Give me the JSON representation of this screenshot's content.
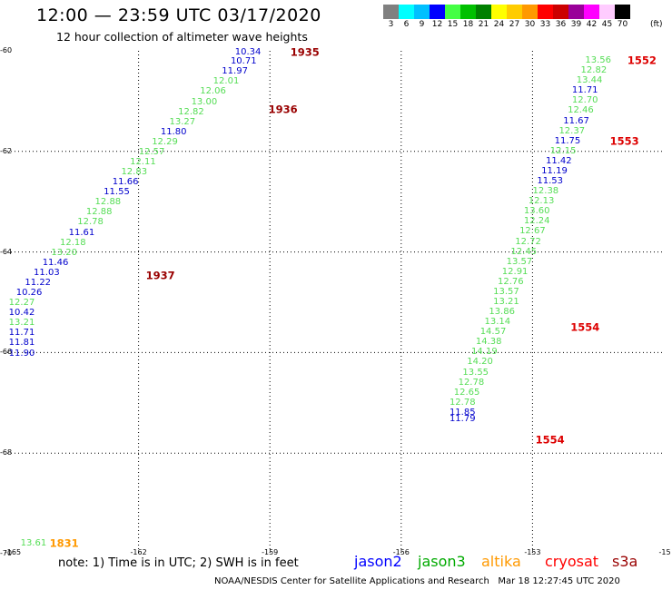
{
  "header": {
    "title": "12:00 — 23:59 UTC 03/17/2020",
    "subtitle": "12 hour collection of altimeter wave heights"
  },
  "colorbar": {
    "colors": [
      "#808080",
      "#00ffff",
      "#00c0ff",
      "#0000ff",
      "#44ff44",
      "#00c000",
      "#008000",
      "#ffff00",
      "#ffcc00",
      "#ff9900",
      "#ff0000",
      "#cc0000",
      "#990099",
      "#ff00ff",
      "#ffccff",
      "#000000"
    ],
    "labels": [
      "3",
      "6",
      "9",
      "12",
      "15",
      "18",
      "21",
      "24",
      "27",
      "30",
      "33",
      "36",
      "39",
      "42",
      "45",
      "70"
    ],
    "unit": "(ft)"
  },
  "map": {
    "y_tick_labels": [
      "-60",
      "-62",
      "-64",
      "-66",
      "-68",
      "-70"
    ],
    "x_tick_labels": [
      "-165",
      "-162",
      "-159",
      "-156",
      "-153",
      "-15"
    ]
  },
  "colors": {
    "jason2": "#0000ff",
    "jason3": "#00aa00",
    "altika": "#ff9900",
    "cryosat": "#ff0000",
    "s3a": "#990000",
    "green_marks": "#55dd55",
    "blue_marks": "#0000cc"
  },
  "chart_data": {
    "type": "scatter",
    "x_range": [
      -165,
      -150
    ],
    "y_range": [
      -70,
      -60
    ],
    "time_labels": [
      {
        "text": "1935",
        "lon": -158.2,
        "lat": -60.03,
        "color": "#990000"
      },
      {
        "text": "1936",
        "lon": -158.7,
        "lat": -61.17,
        "color": "#990000"
      },
      {
        "text": "1937",
        "lon": -161.5,
        "lat": -64.48,
        "color": "#990000"
      },
      {
        "text": "1831",
        "lon": -163.7,
        "lat": -69.8,
        "color": "#ff9900"
      },
      {
        "text": "1552",
        "lon": -150.5,
        "lat": -60.2,
        "color": "#dd0000"
      },
      {
        "text": "1553",
        "lon": -150.9,
        "lat": -61.8,
        "color": "#dd0000"
      },
      {
        "text": "1554",
        "lon": -151.8,
        "lat": -65.5,
        "color": "#dd0000"
      },
      {
        "text": "1554",
        "lon": -152.6,
        "lat": -67.75,
        "color": "#dd0000"
      }
    ],
    "points": [
      {
        "v": "10.34",
        "lon": -159.5,
        "lat": -60.03,
        "c": "b"
      },
      {
        "v": "10.71",
        "lon": -159.6,
        "lat": -60.22,
        "c": "b"
      },
      {
        "v": "11.97",
        "lon": -159.8,
        "lat": -60.42,
        "c": "b"
      },
      {
        "v": "12.01",
        "lon": -160.0,
        "lat": -60.62,
        "c": "g"
      },
      {
        "v": "12.06",
        "lon": -160.3,
        "lat": -60.82,
        "c": "g"
      },
      {
        "v": "13.00",
        "lon": -160.5,
        "lat": -61.02,
        "c": "g"
      },
      {
        "v": "12.82",
        "lon": -160.8,
        "lat": -61.22,
        "c": "g"
      },
      {
        "v": "13.27",
        "lon": -161.0,
        "lat": -61.42,
        "c": "g"
      },
      {
        "v": "11.80",
        "lon": -161.2,
        "lat": -61.62,
        "c": "b"
      },
      {
        "v": "12.29",
        "lon": -161.4,
        "lat": -61.82,
        "c": "g"
      },
      {
        "v": "12.57",
        "lon": -161.7,
        "lat": -62.02,
        "c": "g"
      },
      {
        "v": "12.11",
        "lon": -161.9,
        "lat": -62.22,
        "c": "g"
      },
      {
        "v": "12.83",
        "lon": -162.1,
        "lat": -62.42,
        "c": "g"
      },
      {
        "v": "11.66",
        "lon": -162.3,
        "lat": -62.62,
        "c": "b"
      },
      {
        "v": "11.55",
        "lon": -162.5,
        "lat": -62.82,
        "c": "b"
      },
      {
        "v": "12.88",
        "lon": -162.7,
        "lat": -63.02,
        "c": "g"
      },
      {
        "v": "12.88",
        "lon": -162.9,
        "lat": -63.22,
        "c": "g"
      },
      {
        "v": "12.78",
        "lon": -163.1,
        "lat": -63.42,
        "c": "g"
      },
      {
        "v": "11.61",
        "lon": -163.3,
        "lat": -63.62,
        "c": "b"
      },
      {
        "v": "12.18",
        "lon": -163.5,
        "lat": -63.82,
        "c": "g"
      },
      {
        "v": "13.20",
        "lon": -163.7,
        "lat": -64.02,
        "c": "g"
      },
      {
        "v": "11.46",
        "lon": -163.9,
        "lat": -64.22,
        "c": "b"
      },
      {
        "v": "11.03",
        "lon": -164.1,
        "lat": -64.42,
        "c": "b"
      },
      {
        "v": "11.22",
        "lon": -164.3,
        "lat": -64.62,
        "c": "b"
      },
      {
        "v": "10.26",
        "lon": -164.5,
        "lat": -64.82,
        "c": "b"
      },
      {
        "v": "12.27",
        "lon": -164.7,
        "lat": -65.02,
        "c": "g"
      },
      {
        "v": "10.42",
        "lon": -164.9,
        "lat": -65.22,
        "c": "b"
      },
      {
        "v": "13.21",
        "lon": -165.1,
        "lat": -65.42,
        "c": "g"
      },
      {
        "v": "11.71",
        "lon": -165.3,
        "lat": -65.62,
        "c": "b"
      },
      {
        "v": "11.81",
        "lon": -165.5,
        "lat": -65.82,
        "c": "b"
      },
      {
        "v": "11.90",
        "lon": -165.7,
        "lat": -66.02,
        "c": "b"
      },
      {
        "v": "13.61",
        "lon": -164.4,
        "lat": -69.8,
        "c": "g"
      },
      {
        "v": "13.56",
        "lon": -151.5,
        "lat": -60.2,
        "c": "g"
      },
      {
        "v": "12.82",
        "lon": -151.6,
        "lat": -60.4,
        "c": "g"
      },
      {
        "v": "13.44",
        "lon": -151.7,
        "lat": -60.6,
        "c": "g"
      },
      {
        "v": "11.71",
        "lon": -151.8,
        "lat": -60.8,
        "c": "b"
      },
      {
        "v": "12.70",
        "lon": -151.8,
        "lat": -61.0,
        "c": "g"
      },
      {
        "v": "12.46",
        "lon": -151.9,
        "lat": -61.2,
        "c": "g"
      },
      {
        "v": "11.67",
        "lon": -152.0,
        "lat": -61.4,
        "c": "b"
      },
      {
        "v": "12.37",
        "lon": -152.1,
        "lat": -61.6,
        "c": "g"
      },
      {
        "v": "11.75",
        "lon": -152.2,
        "lat": -61.8,
        "c": "b"
      },
      {
        "v": "12.15",
        "lon": -152.3,
        "lat": -62.0,
        "c": "g"
      },
      {
        "v": "11.42",
        "lon": -152.4,
        "lat": -62.2,
        "c": "b"
      },
      {
        "v": "11.19",
        "lon": -152.5,
        "lat": -62.4,
        "c": "b"
      },
      {
        "v": "11.53",
        "lon": -152.6,
        "lat": -62.6,
        "c": "b"
      },
      {
        "v": "12.38",
        "lon": -152.7,
        "lat": -62.8,
        "c": "g"
      },
      {
        "v": "12.13",
        "lon": -152.8,
        "lat": -63.0,
        "c": "g"
      },
      {
        "v": "13.60",
        "lon": -152.9,
        "lat": -63.2,
        "c": "g"
      },
      {
        "v": "12.24",
        "lon": -152.9,
        "lat": -63.4,
        "c": "g"
      },
      {
        "v": "12.67",
        "lon": -153.0,
        "lat": -63.6,
        "c": "g"
      },
      {
        "v": "12.72",
        "lon": -153.1,
        "lat": -63.8,
        "c": "g"
      },
      {
        "v": "12.45",
        "lon": -153.2,
        "lat": -64.0,
        "c": "g"
      },
      {
        "v": "13.57",
        "lon": -153.3,
        "lat": -64.2,
        "c": "g"
      },
      {
        "v": "12.91",
        "lon": -153.4,
        "lat": -64.4,
        "c": "g"
      },
      {
        "v": "12.76",
        "lon": -153.5,
        "lat": -64.6,
        "c": "g"
      },
      {
        "v": "13.57",
        "lon": -153.6,
        "lat": -64.8,
        "c": "g"
      },
      {
        "v": "13.21",
        "lon": -153.6,
        "lat": -65.0,
        "c": "g"
      },
      {
        "v": "13.86",
        "lon": -153.7,
        "lat": -65.2,
        "c": "g"
      },
      {
        "v": "13.14",
        "lon": -153.8,
        "lat": -65.4,
        "c": "g"
      },
      {
        "v": "14.57",
        "lon": -153.9,
        "lat": -65.6,
        "c": "g"
      },
      {
        "v": "14.38",
        "lon": -154.0,
        "lat": -65.8,
        "c": "g"
      },
      {
        "v": "14.19",
        "lon": -154.1,
        "lat": -66.0,
        "c": "g"
      },
      {
        "v": "14.20",
        "lon": -154.2,
        "lat": -66.2,
        "c": "g"
      },
      {
        "v": "13.55",
        "lon": -154.3,
        "lat": -66.4,
        "c": "g"
      },
      {
        "v": "12.78",
        "lon": -154.4,
        "lat": -66.6,
        "c": "g"
      },
      {
        "v": "12.65",
        "lon": -154.5,
        "lat": -66.8,
        "c": "g"
      },
      {
        "v": "12.78",
        "lon": -154.6,
        "lat": -67.0,
        "c": "g"
      },
      {
        "v": "11.85",
        "lon": -154.6,
        "lat": -67.2,
        "c": "b"
      },
      {
        "v": "11.79",
        "lon": -154.6,
        "lat": -67.33,
        "c": "b"
      }
    ]
  },
  "footer": {
    "note": "note: 1) Time is in UTC; 2) SWH is in feet",
    "legend": [
      "jason2",
      "jason3",
      "altika",
      "cryosat",
      "s3a"
    ],
    "credit": "NOAA/NESDIS Center for Satellite Applications and Research",
    "timestamp": "Mar 18 12:27:45 UTC 2020"
  }
}
